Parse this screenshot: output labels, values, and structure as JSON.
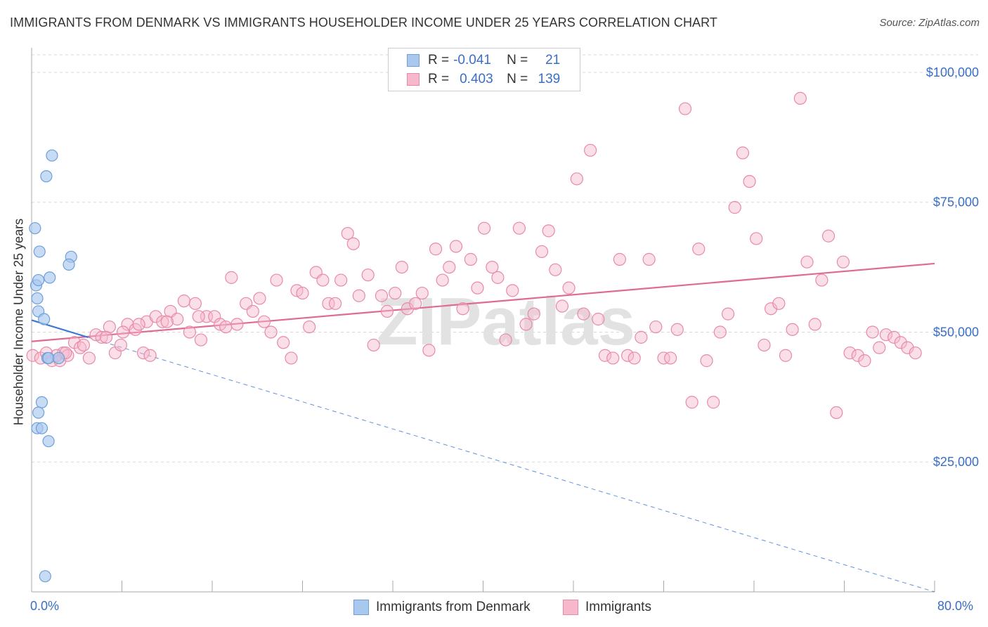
{
  "title": "IMMIGRANTS FROM DENMARK VS IMMIGRANTS HOUSEHOLDER INCOME UNDER 25 YEARS CORRELATION CHART",
  "source": "Source: ZipAtlas.com",
  "watermark": "ZIPatlas",
  "legend": {
    "rows": [
      {
        "r_label": "R =",
        "r_value": "-0.041",
        "n_label": "N =",
        "n_value": "21",
        "color": "#a9c8f0",
        "edge": "#6e9fd8"
      },
      {
        "r_label": "R =",
        "r_value": "0.403",
        "n_label": "N =",
        "n_value": "139",
        "color": "#f7b8cc",
        "edge": "#e88aa6"
      }
    ]
  },
  "bottom_legend": {
    "series1": "Immigrants from Denmark",
    "series2": "Immigrants"
  },
  "x_axis": {
    "min_label": "0.0%",
    "max_label": "80.0%"
  },
  "colors": {
    "blue_fill": "#a9c8f0",
    "blue_edge": "#6e9fd8",
    "blue_line": "#3a78d4",
    "pink_fill": "#f7b8cc",
    "pink_edge": "#e88aa6",
    "pink_line": "#e06a92",
    "tick_text": "#3a6fc4",
    "grid": "#d8d8d8"
  },
  "chart_data": {
    "type": "scatter",
    "title": "IMMIGRANTS FROM DENMARK VS IMMIGRANTS HOUSEHOLDER INCOME UNDER 25 YEARS CORRELATION CHART",
    "xlabel": "",
    "ylabel": "Householder Income Under 25 years",
    "xlim": [
      0,
      80
    ],
    "ylim": [
      0,
      105000
    ],
    "y_ticks": [
      25000,
      50000,
      75000,
      100000
    ],
    "y_tick_labels": [
      "$25,000",
      "$50,000",
      "$75,000",
      "$100,000"
    ],
    "x_tick_values": [
      0,
      8,
      16,
      24,
      32,
      40,
      48,
      56,
      64,
      72,
      80
    ],
    "series": [
      {
        "name": "Immigrants from Denmark",
        "x": [
          1.8,
          1.3,
          0.3,
          0.7,
          0.4,
          1.6,
          0.6,
          3.5,
          0.5,
          3.3,
          1.4,
          1.5,
          0.6,
          1.1,
          0.9,
          0.6,
          0.5,
          0.9,
          1.5,
          1.2,
          2.4
        ],
        "y": [
          84000,
          80000,
          70000,
          65500,
          59000,
          60500,
          60000,
          64500,
          56500,
          63000,
          45000,
          45000,
          54000,
          52500,
          36500,
          34500,
          31500,
          31500,
          29000,
          3000,
          45000
        ]
      },
      {
        "name": "Immigrants",
        "x": [
          0.1,
          0.8,
          1.3,
          1.8,
          2.5,
          2.8,
          3.2,
          3.8,
          4.3,
          5.1,
          5.7,
          6.2,
          6.9,
          7.4,
          7.9,
          8.5,
          9.2,
          9.9,
          10.2,
          10.5,
          11.0,
          11.6,
          12.3,
          12.9,
          13.5,
          14.0,
          14.5,
          15.0,
          15.5,
          16.2,
          16.7,
          17.2,
          17.7,
          18.2,
          19.0,
          19.6,
          20.2,
          20.6,
          21.2,
          21.7,
          22.3,
          23.0,
          23.5,
          24.0,
          24.6,
          25.2,
          25.8,
          26.3,
          26.9,
          27.4,
          28.0,
          28.5,
          29.0,
          29.8,
          30.3,
          31.0,
          31.5,
          32.2,
          32.8,
          33.3,
          34.0,
          34.6,
          35.2,
          35.8,
          36.4,
          37.0,
          37.6,
          38.2,
          38.9,
          39.5,
          40.1,
          40.8,
          41.3,
          42.0,
          42.6,
          43.2,
          43.8,
          44.5,
          45.2,
          45.8,
          46.4,
          47.0,
          47.6,
          48.3,
          48.9,
          49.5,
          50.2,
          50.8,
          51.5,
          52.1,
          52.8,
          53.4,
          54.0,
          54.7,
          55.3,
          56.0,
          56.6,
          57.2,
          57.9,
          58.5,
          59.1,
          59.8,
          60.4,
          61.0,
          61.7,
          62.3,
          63.0,
          63.6,
          64.2,
          64.9,
          65.5,
          66.2,
          66.8,
          67.4,
          68.1,
          68.7,
          69.4,
          70.0,
          70.6,
          71.3,
          71.9,
          72.5,
          73.2,
          73.8,
          74.5,
          75.1,
          75.7,
          76.4,
          77.0,
          77.6,
          78.3,
          2.2,
          3.0,
          4.6,
          6.6,
          8.1,
          9.5,
          12.0,
          14.8
        ],
        "y": [
          45500,
          45000,
          46000,
          44500,
          44500,
          46000,
          45500,
          48000,
          47000,
          45000,
          49500,
          49000,
          51000,
          46000,
          47500,
          51500,
          50500,
          46000,
          52000,
          45500,
          53000,
          52000,
          54000,
          52500,
          56000,
          50000,
          55500,
          48500,
          53000,
          53000,
          51500,
          51000,
          60500,
          51500,
          55500,
          54000,
          56500,
          52000,
          50000,
          60000,
          48000,
          45000,
          58000,
          57500,
          51000,
          61500,
          60000,
          55500,
          55500,
          60000,
          69000,
          67000,
          57000,
          61000,
          47500,
          57000,
          54000,
          57500,
          62500,
          54500,
          55500,
          57500,
          46500,
          66000,
          60000,
          62500,
          66500,
          54500,
          64000,
          58500,
          70000,
          62500,
          60500,
          48500,
          58000,
          70000,
          51500,
          53500,
          65500,
          69500,
          62000,
          55000,
          58500,
          79500,
          53500,
          85000,
          52500,
          45500,
          45000,
          64000,
          45500,
          45000,
          49000,
          64000,
          51000,
          45000,
          45000,
          50500,
          93000,
          36500,
          66000,
          44500,
          36500,
          50000,
          53500,
          74000,
          84500,
          79000,
          68000,
          47500,
          54500,
          55500,
          45500,
          50500,
          95000,
          63500,
          51500,
          60000,
          68500,
          34500,
          63500,
          46000,
          45500,
          44500,
          50000,
          47000,
          49500,
          49000,
          48000,
          47000,
          46000,
          45500,
          46000,
          47500,
          49000,
          50000,
          51500,
          52000,
          53000
        ],
        "trend": {
          "x": [
            0,
            80
          ],
          "y": [
            48200,
            63200
          ]
        }
      }
    ],
    "denmark_trend": {
      "solid_x": [
        0,
        5
      ],
      "solid_y": [
        52300,
        49000
      ],
      "dashed_x": [
        5,
        80
      ],
      "dashed_y": [
        49000,
        0
      ]
    }
  }
}
